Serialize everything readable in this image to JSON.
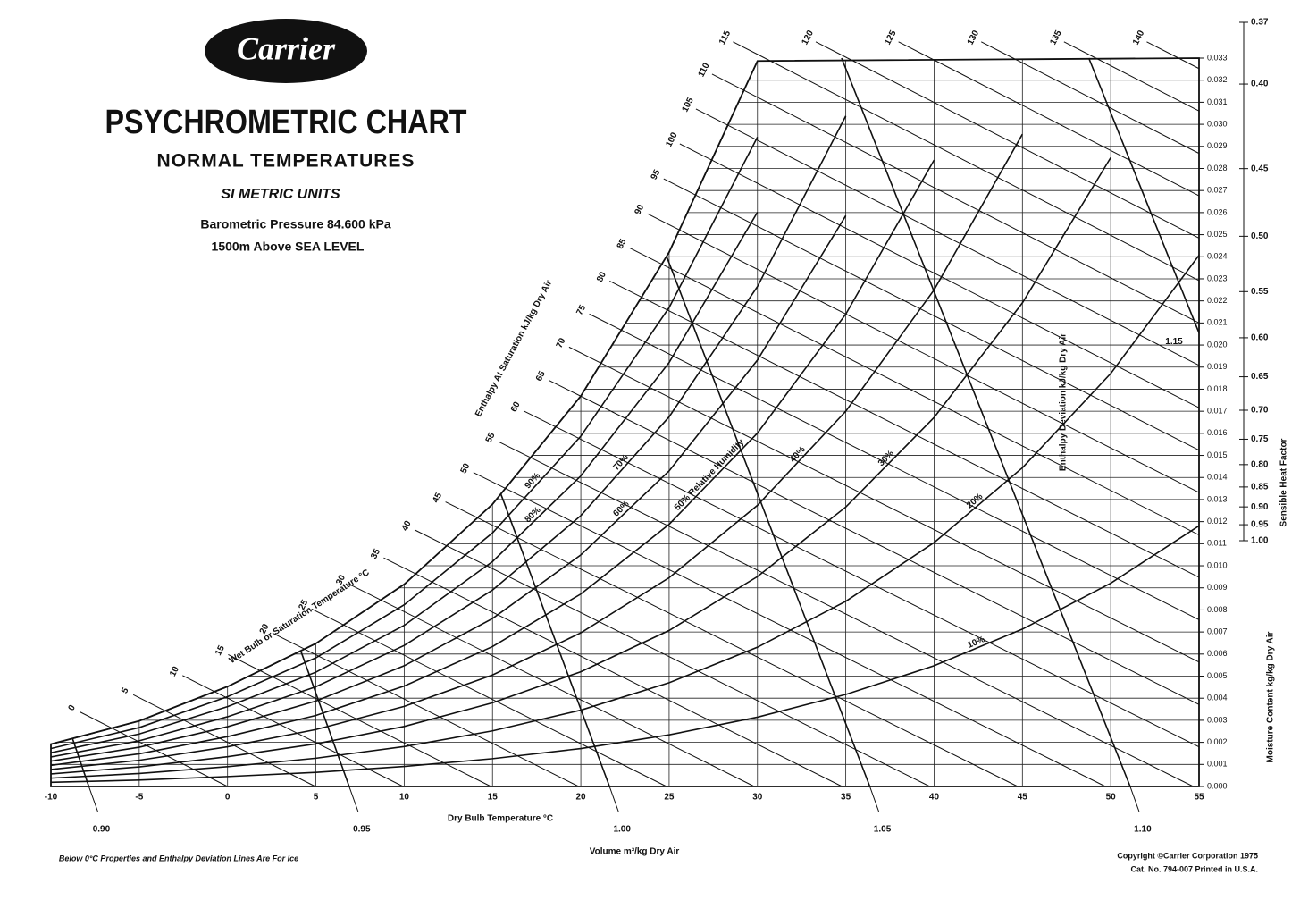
{
  "chart_data": {
    "type": "psychrometric",
    "brand": "Carrier",
    "title": "PSYCHROMETRIC CHART",
    "subtitle": "NORMAL TEMPERATURES",
    "units": "SI METRIC UNITS",
    "pressure_text": "Barometric Pressure 84.600 kPa",
    "pressure": 84.6,
    "altitude_text": "1500m Above SEA LEVEL",
    "x_label": "Dry Bulb Temperature °C",
    "y_label": "Moisture Content kg/kg Dry Air",
    "volume_label": "Volume m³/kg Dry Air",
    "enthalpy_label": "Enthalpy At Saturation kJ/kg Dry Air",
    "wet_bulb_label": "Wet Bulb or Saturation Temperature °C",
    "deviation_label": "Enthalpy Deviation kJ/kg Dry Air",
    "shf_label": "Sensible Heat Factor",
    "note": "Below 0°C Properties and Enthalpy Deviation Lines Are For Ice",
    "copyright": "Copyright ©Carrier Corporation 1975",
    "catalog": "Cat. No. 794-007    Printed in U.S.A.",
    "xlim": [
      -10,
      55
    ],
    "xticks": [
      -10,
      -5,
      0,
      5,
      10,
      15,
      20,
      25,
      30,
      35,
      40,
      45,
      50,
      55
    ],
    "ylim": [
      0,
      0.033
    ],
    "yticks": [
      {
        "value": 0,
        "label": "0.000"
      },
      {
        "value": 0.001,
        "label": "0.001"
      },
      {
        "value": 0.002,
        "label": "0.002"
      },
      {
        "value": 0.003,
        "label": "0.003"
      },
      {
        "value": 0.004,
        "label": "0.004"
      },
      {
        "value": 0.005,
        "label": "0.005"
      },
      {
        "value": 0.006,
        "label": "0.006"
      },
      {
        "value": 0.007,
        "label": "0.007"
      },
      {
        "value": 0.008,
        "label": "0.008"
      },
      {
        "value": 0.009,
        "label": "0.009"
      },
      {
        "value": 0.01,
        "label": "0.010"
      },
      {
        "value": 0.011,
        "label": "0.011"
      },
      {
        "value": 0.012,
        "label": "0.012"
      },
      {
        "value": 0.013,
        "label": "0.013"
      },
      {
        "value": 0.014,
        "label": "0.014"
      },
      {
        "value": 0.015,
        "label": "0.015"
      },
      {
        "value": 0.016,
        "label": "0.016"
      },
      {
        "value": 0.017,
        "label": "0.017"
      },
      {
        "value": 0.018,
        "label": "0.018"
      },
      {
        "value": 0.019,
        "label": "0.019"
      },
      {
        "value": 0.02,
        "label": "0.020"
      },
      {
        "value": 0.021,
        "label": "0.021"
      },
      {
        "value": 0.022,
        "label": "0.022"
      },
      {
        "value": 0.023,
        "label": "0.023"
      },
      {
        "value": 0.024,
        "label": "0.024"
      },
      {
        "value": 0.025,
        "label": "0.025"
      },
      {
        "value": 0.026,
        "label": "0.026"
      },
      {
        "value": 0.027,
        "label": "0.027"
      },
      {
        "value": 0.028,
        "label": "0.028"
      },
      {
        "value": 0.029,
        "label": "0.029"
      },
      {
        "value": 0.03,
        "label": "0.030"
      },
      {
        "value": 0.031,
        "label": "0.031"
      },
      {
        "value": 0.032,
        "label": "0.032"
      },
      {
        "value": 0.033,
        "label": "0.033"
      }
    ],
    "grid": true,
    "saturation": {
      "x": [
        -10,
        -5,
        0,
        5,
        10,
        15,
        20,
        25,
        30
      ],
      "values": [
        0.00192,
        0.00297,
        0.00453,
        0.00648,
        0.00916,
        0.01279,
        0.01769,
        0.02421,
        0.03287
      ]
    },
    "rh_lines": [
      {
        "label": "90%",
        "x": [
          -10,
          -5,
          0,
          5,
          10,
          15,
          20,
          25,
          30
        ],
        "values": [
          0.00172,
          0.00267,
          0.00407,
          0.00583,
          0.00823,
          0.01149,
          0.01587,
          0.0217,
          0.02942
        ]
      },
      {
        "label": "80%",
        "x": [
          -10,
          -5,
          0,
          5,
          10,
          15,
          20,
          25,
          30
        ],
        "values": [
          0.00153,
          0.00238,
          0.00362,
          0.00518,
          0.0073,
          0.01019,
          0.01407,
          0.01921,
          0.02602
        ]
      },
      {
        "label": "70%",
        "x": [
          -10,
          -5,
          0,
          5,
          10,
          15,
          20,
          25,
          30,
          35
        ],
        "values": [
          0.00134,
          0.00207,
          0.00316,
          0.00452,
          0.00639,
          0.0089,
          0.01227,
          0.01675,
          0.02265,
          0.03038
        ]
      },
      {
        "label": "60%",
        "x": [
          -10,
          -5,
          0,
          5,
          10,
          15,
          20,
          25,
          30,
          35
        ],
        "values": [
          0.00115,
          0.00178,
          0.00271,
          0.00387,
          0.00547,
          0.00761,
          0.01049,
          0.0143,
          0.01932,
          0.02586
        ]
      },
      {
        "label": "50% Relative Humidity",
        "x": [
          -10,
          -5,
          0,
          5,
          10,
          15,
          20,
          25,
          30,
          35,
          40
        ],
        "values": [
          0.00096,
          0.00148,
          0.00226,
          0.00322,
          0.00455,
          0.00634,
          0.00872,
          0.01188,
          0.01601,
          0.0214,
          0.02838
        ]
      },
      {
        "label": "40%",
        "x": [
          -10,
          -5,
          0,
          5,
          10,
          15,
          20,
          25,
          30,
          35,
          40,
          45
        ],
        "values": [
          0.00077,
          0.00119,
          0.0018,
          0.00258,
          0.00363,
          0.00505,
          0.00696,
          0.00946,
          0.01274,
          0.017,
          0.0225,
          0.02955
        ]
      },
      {
        "label": "30%",
        "x": [
          -10,
          -5,
          0,
          5,
          10,
          15,
          20,
          25,
          30,
          35,
          40,
          45,
          50
        ],
        "values": [
          0.00057,
          0.00089,
          0.00135,
          0.00193,
          0.00272,
          0.00379,
          0.0052,
          0.00707,
          0.00951,
          0.01266,
          0.01672,
          0.02191,
          0.02849
        ]
      },
      {
        "label": "20%",
        "x": [
          -10,
          -5,
          0,
          5,
          10,
          15,
          20,
          25,
          30,
          35,
          40,
          45,
          50,
          55
        ],
        "values": [
          0.00038,
          0.00059,
          0.0009,
          0.00128,
          0.00181,
          0.00252,
          0.00346,
          0.0047,
          0.00631,
          0.00839,
          0.01105,
          0.01444,
          0.01871,
          0.02407
        ]
      },
      {
        "label": "10%",
        "x": [
          -10,
          -5,
          0,
          5,
          10,
          15,
          20,
          25,
          30,
          35,
          40,
          45,
          50,
          55
        ],
        "values": [
          0.00019,
          0.00029,
          0.00045,
          0.00064,
          0.00091,
          0.00126,
          0.00172,
          0.00234,
          0.00314,
          0.00417,
          0.00547,
          0.00713,
          0.00921,
          0.01181
        ]
      }
    ],
    "enthalpy": [
      0,
      5,
      10,
      15,
      20,
      25,
      30,
      35,
      40,
      45,
      50,
      55,
      60,
      65,
      70,
      75,
      80,
      85,
      90,
      95,
      100,
      105,
      110,
      115,
      120,
      125,
      130,
      135,
      140
    ],
    "volume": [
      {
        "value": 0.9,
        "label": "0.90"
      },
      {
        "value": 0.95,
        "label": "0.95"
      },
      {
        "value": 1.0,
        "label": "1.00"
      },
      {
        "value": 1.05,
        "label": "1.05"
      },
      {
        "value": 1.1,
        "label": "1.10"
      },
      {
        "value": 1.15,
        "label": "1.15"
      }
    ],
    "shf_lim": [
      0.37,
      1.0
    ],
    "shf_ticks": [
      0.37,
      {
        "value": 0.4,
        "label": "0.40"
      },
      0.45,
      {
        "value": 0.5,
        "label": "0.50"
      },
      0.55,
      {
        "value": 0.6,
        "label": "0.60"
      },
      0.65,
      {
        "value": 0.7,
        "label": "0.70"
      },
      0.75,
      {
        "value": 0.8,
        "label": "0.80"
      },
      0.85,
      {
        "value": 0.9,
        "label": "0.90"
      },
      0.95,
      {
        "value": 1.0,
        "label": "1.00"
      }
    ]
  }
}
